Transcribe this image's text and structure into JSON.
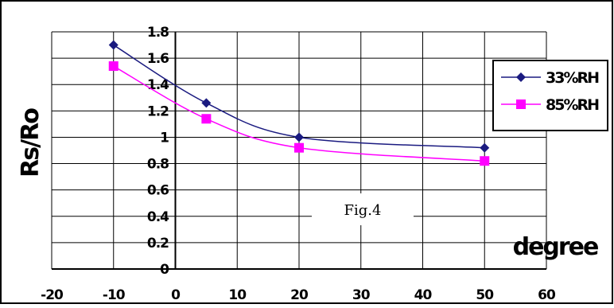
{
  "chart_data": {
    "type": "line",
    "title": "",
    "xlabel": "degree",
    "ylabel": "Rs/Ro",
    "xlim": [
      -20,
      60
    ],
    "ylim": [
      0,
      1.8
    ],
    "x_ticks": [
      "-20",
      "-10",
      "0",
      "10",
      "20",
      "30",
      "40",
      "50",
      "60"
    ],
    "y_ticks": [
      "0",
      "0.2",
      "0.4",
      "0.6",
      "0.8",
      "1",
      "1.2",
      "1.4",
      "1.6",
      "1.8"
    ],
    "grid": true,
    "legend_position": "right",
    "annotation": "Fig.4",
    "series": [
      {
        "name": "33%RH",
        "color": "#1a1a80",
        "marker": "diamond",
        "points": [
          [
            -10,
            1.7
          ],
          [
            5,
            1.26
          ],
          [
            20,
            1.0
          ],
          [
            50,
            0.92
          ]
        ]
      },
      {
        "name": "85%RH",
        "color": "#ff00ff",
        "marker": "square",
        "points": [
          [
            -10,
            1.54
          ],
          [
            5,
            1.14
          ],
          [
            20,
            0.92
          ],
          [
            50,
            0.82
          ]
        ]
      }
    ]
  }
}
